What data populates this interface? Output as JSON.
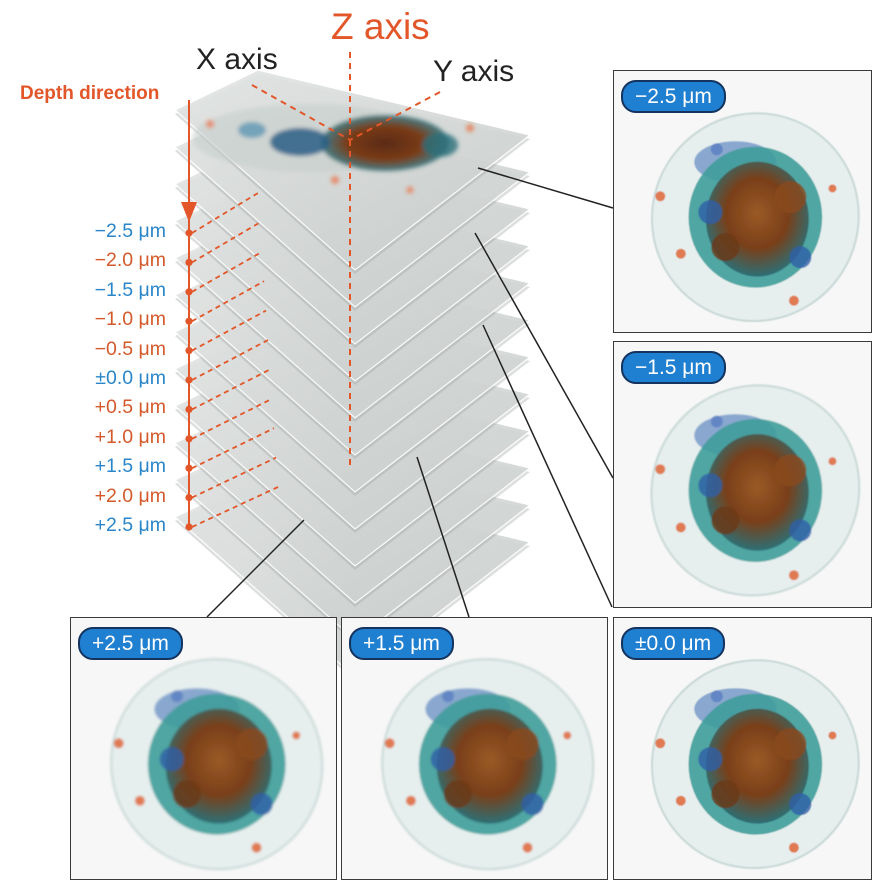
{
  "axes": {
    "z_label": "Z axis",
    "x_label": "X axis",
    "y_label": "Y axis",
    "depth_label": "Depth direction"
  },
  "depth_ticks": [
    {
      "label": "−2.5 μm",
      "color": "#2a86c8"
    },
    {
      "label": "−2.0 μm",
      "color": "#d45a2c"
    },
    {
      "label": "−1.5 μm",
      "color": "#2a86c8"
    },
    {
      "label": "−1.0 μm",
      "color": "#d45a2c"
    },
    {
      "label": "−0.5 μm",
      "color": "#d45a2c"
    },
    {
      "label": "±0.0 μm",
      "color": "#2a86c8"
    },
    {
      "label": "+0.5 μm",
      "color": "#d45a2c"
    },
    {
      "label": "+1.0 μm",
      "color": "#d45a2c"
    },
    {
      "label": "+1.5 μm",
      "color": "#2a86c8"
    },
    {
      "label": "+2.0 μm",
      "color": "#d45a2c"
    },
    {
      "label": "+2.5 μm",
      "color": "#2a86c8"
    }
  ],
  "panels": [
    {
      "id": "minus-2-5",
      "badge": "−2.5 μm"
    },
    {
      "id": "minus-1-5",
      "badge": "−1.5 μm"
    },
    {
      "id": "plus-2-5",
      "badge": "+2.5 μm"
    },
    {
      "id": "plus-1-5",
      "badge": "+1.5 μm"
    },
    {
      "id": "zero",
      "badge": "±0.0 μm"
    }
  ],
  "colors": {
    "accent_orange": "#e2562a",
    "badge_blue": "#1f7fd1",
    "badge_border": "#14335e",
    "cell_brown": "#8a4a1e",
    "cell_teal": "#3fa89a",
    "cell_blue": "#3d63b4"
  }
}
